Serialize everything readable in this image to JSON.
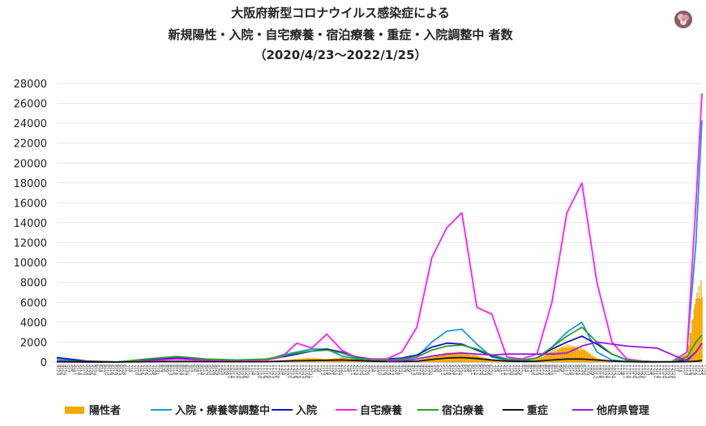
{
  "chart_data": {
    "type": "line",
    "title": [
      "大阪府新型コロナウイルス感染症による",
      "新規陽性・入院・自宅療養・宿泊療養・重症・入院調整中 者数",
      "（2020/4/23～2022/1/25）"
    ],
    "xlabel": "",
    "ylabel": "",
    "ylim": [
      0,
      28000
    ],
    "yticks": [
      0,
      2000,
      4000,
      6000,
      8000,
      10000,
      12000,
      14000,
      16000,
      18000,
      20000,
      22000,
      24000,
      26000,
      28000
    ],
    "x_range": [
      "2020/4/23",
      "2022/1/25"
    ],
    "grid": true,
    "legend_position": "bottom",
    "x": [
      0,
      30,
      60,
      90,
      120,
      150,
      180,
      210,
      225,
      240,
      255,
      270,
      285,
      300,
      315,
      330,
      345,
      360,
      375,
      390,
      405,
      420,
      435,
      450,
      465,
      480,
      495,
      510,
      525,
      540,
      555,
      570,
      585,
      600,
      615,
      630,
      639,
      645
    ],
    "series": [
      {
        "name": "陽性者",
        "color": "#f5a800",
        "kind": "bars",
        "values": [
          50,
          10,
          0,
          80,
          140,
          50,
          60,
          120,
          200,
          350,
          450,
          300,
          500,
          400,
          150,
          80,
          100,
          150,
          600,
          1000,
          1100,
          700,
          250,
          100,
          50,
          300,
          1200,
          1800,
          1500,
          400,
          80,
          20,
          10,
          5,
          50,
          900,
          7000,
          8500
        ]
      },
      {
        "name": "入院・療養等調整中",
        "color": "#1a9ad6",
        "values": [
          300,
          50,
          0,
          200,
          400,
          150,
          100,
          200,
          700,
          1000,
          1300,
          1300,
          600,
          300,
          200,
          200,
          300,
          500,
          2000,
          3100,
          3300,
          1800,
          500,
          200,
          100,
          400,
          1500,
          3000,
          4000,
          1000,
          200,
          50,
          20,
          10,
          50,
          1000,
          12000,
          24300
        ]
      },
      {
        "name": "入院",
        "color": "#1414c8",
        "values": [
          450,
          100,
          10,
          200,
          400,
          250,
          150,
          250,
          500,
          800,
          1100,
          1300,
          1000,
          500,
          300,
          300,
          400,
          700,
          1500,
          1900,
          1800,
          1200,
          600,
          300,
          200,
          400,
          1300,
          2000,
          2600,
          1800,
          800,
          200,
          80,
          30,
          30,
          200,
          1000,
          1900
        ]
      },
      {
        "name": "自宅療養",
        "color": "#ff1aff",
        "values": [
          0,
          0,
          0,
          100,
          300,
          150,
          100,
          200,
          500,
          1900,
          1400,
          2800,
          1200,
          400,
          300,
          300,
          1000,
          3500,
          10500,
          13500,
          15000,
          5500,
          4800,
          500,
          300,
          800,
          6000,
          15000,
          18000,
          8000,
          2000,
          300,
          100,
          30,
          50,
          1000,
          16000,
          27000
        ]
      },
      {
        "name": "宿泊療養",
        "color": "#2aa02a",
        "values": [
          100,
          50,
          10,
          300,
          550,
          300,
          200,
          300,
          600,
          900,
          1100,
          1200,
          900,
          400,
          200,
          200,
          300,
          500,
          1200,
          1600,
          1700,
          1300,
          700,
          300,
          200,
          400,
          1500,
          2600,
          3500,
          2000,
          800,
          200,
          80,
          30,
          30,
          500,
          2000,
          2700
        ]
      },
      {
        "name": "重症",
        "color": "#111111",
        "values": [
          50,
          20,
          0,
          30,
          60,
          40,
          30,
          40,
          80,
          120,
          150,
          180,
          200,
          150,
          80,
          50,
          50,
          80,
          250,
          400,
          450,
          350,
          200,
          100,
          60,
          80,
          200,
          300,
          300,
          200,
          100,
          40,
          20,
          10,
          10,
          30,
          80,
          150
        ]
      },
      {
        "name": "他府県管理",
        "color": "#9a1ae6",
        "kind": "partial",
        "x": [
          330,
          345,
          360,
          375,
          390,
          405,
          420,
          435,
          450,
          465,
          480,
          495,
          510,
          525,
          540,
          555,
          570,
          585,
          600,
          630,
          639,
          645
        ],
        "values": [
          100,
          150,
          300,
          600,
          800,
          900,
          800,
          700,
          800,
          800,
          800,
          800,
          900,
          1600,
          2000,
          1800,
          1600,
          1500,
          1400,
          100,
          1000,
          1900
        ]
      }
    ]
  }
}
